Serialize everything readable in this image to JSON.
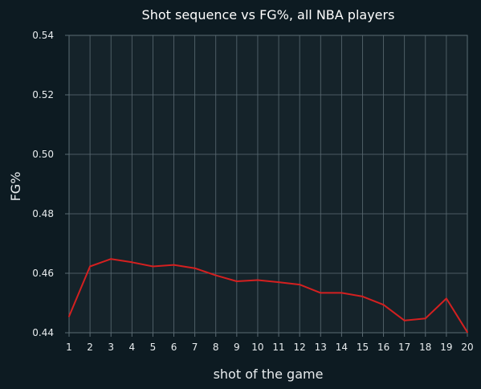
{
  "colors": {
    "page_background": "#0d1b22",
    "plot_background": "#15232a",
    "grid": "#5c6c74",
    "line": "#d42020",
    "text": "#e8ecee"
  },
  "chart_data": {
    "type": "line",
    "title": "Shot sequence vs FG%, all NBA players",
    "xlabel": "shot of the game",
    "ylabel": "FG%",
    "xlim": [
      1,
      20
    ],
    "ylim": [
      0.44,
      0.54
    ],
    "x_ticks": [
      1,
      2,
      3,
      4,
      5,
      6,
      7,
      8,
      9,
      10,
      11,
      12,
      13,
      14,
      15,
      16,
      17,
      18,
      19,
      20
    ],
    "y_ticks": [
      "0.44",
      "0.46",
      "0.48",
      "0.50",
      "0.52",
      "0.54"
    ],
    "grid": true,
    "series": [
      {
        "color": "#d42020",
        "x": [
          1,
          2,
          3,
          4,
          5,
          6,
          7,
          8,
          9,
          10,
          11,
          12,
          13,
          14,
          15,
          16,
          17,
          18,
          19,
          20
        ],
        "values": [
          0.4455,
          0.4623,
          0.4648,
          0.4637,
          0.4623,
          0.4628,
          0.4617,
          0.4593,
          0.4573,
          0.4577,
          0.457,
          0.4562,
          0.4534,
          0.4534,
          0.4522,
          0.4494,
          0.4441,
          0.4448,
          0.4515,
          0.4402
        ]
      }
    ]
  }
}
